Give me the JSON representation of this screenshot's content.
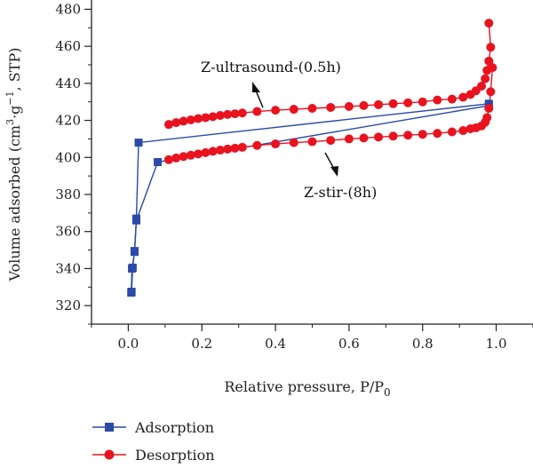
{
  "chart_data": {
    "type": "line",
    "title": "",
    "xlabel": "Relative pressure, P/P",
    "xlabel_sub": "0",
    "ylabel": "Volume adsorbed (cm",
    "ylabel_sup1": "3",
    "ylabel_mid": "·g",
    "ylabel_sup2": "−1",
    "ylabel_end": ", STP)",
    "xlim": [
      -0.1,
      1.1
    ],
    "ylim": [
      310,
      485
    ],
    "x_ticks": [
      "0.0",
      "0.2",
      "0.4",
      "0.6",
      "0.8",
      "1.0"
    ],
    "y_ticks": [
      "320",
      "340",
      "360",
      "380",
      "400",
      "420",
      "440",
      "460",
      "480"
    ],
    "grid": false,
    "legend_placement": "bottom-left",
    "annotations": [
      "Z-ultrasound-(0.5h)",
      "Z-stir-(8h)"
    ],
    "colors": {
      "adsorption": "#2b4aa8",
      "desorption": "#e8131f"
    },
    "series": [
      {
        "name": "Adsorption",
        "marker": "square",
        "x": [
          0.009,
          0.012,
          0.017,
          0.022,
          0.028,
          0.98
        ],
        "y": [
          327.5,
          340.5,
          349.5,
          367,
          408,
          429
        ]
      },
      {
        "name": "Desorption",
        "marker": "circle",
        "x": [
          0.98,
          0.985,
          0.98,
          0.975,
          0.97,
          0.96,
          0.945,
          0.93,
          0.91,
          0.88,
          0.84,
          0.8,
          0.76,
          0.72,
          0.68,
          0.64,
          0.6,
          0.55,
          0.5,
          0.45,
          0.4,
          0.35,
          0.31,
          0.29,
          0.27,
          0.25,
          0.23,
          0.21,
          0.19,
          0.17,
          0.15,
          0.13,
          0.11
        ],
        "y": [
          472.5,
          459.5,
          452,
          447,
          442.5,
          438.5,
          436,
          434,
          432.5,
          431.5,
          431,
          430,
          429.5,
          429,
          428.5,
          428,
          427.5,
          427,
          426.5,
          426,
          425.5,
          424.8,
          424,
          423.6,
          423.2,
          422.7,
          422,
          421.5,
          421,
          420.3,
          419.6,
          418.8,
          417.8
        ]
      },
      {
        "name": "",
        "marker": "square",
        "x": [
          0.008,
          0.01,
          0.017,
          0.022,
          0.08,
          0.98
        ],
        "y": [
          327,
          340,
          349,
          366,
          397.5,
          428
        ]
      },
      {
        "name": "",
        "marker": "circle",
        "x": [
          0.99,
          0.985,
          0.98,
          0.975,
          0.97,
          0.96,
          0.945,
          0.93,
          0.91,
          0.88,
          0.84,
          0.8,
          0.76,
          0.72,
          0.68,
          0.64,
          0.6,
          0.55,
          0.5,
          0.45,
          0.4,
          0.35,
          0.31,
          0.29,
          0.27,
          0.25,
          0.23,
          0.21,
          0.19,
          0.17,
          0.15,
          0.13,
          0.11
        ],
        "y": [
          448.5,
          435.5,
          426.5,
          421.5,
          419,
          417,
          416,
          415.5,
          414.5,
          413.8,
          413,
          412.5,
          412,
          411.5,
          411,
          410.5,
          410,
          409.2,
          408.5,
          408,
          407.3,
          406.5,
          405.5,
          405,
          404.5,
          404,
          403.3,
          402.6,
          401.9,
          401.2,
          400.5,
          399.7,
          398.8
        ]
      }
    ]
  }
}
